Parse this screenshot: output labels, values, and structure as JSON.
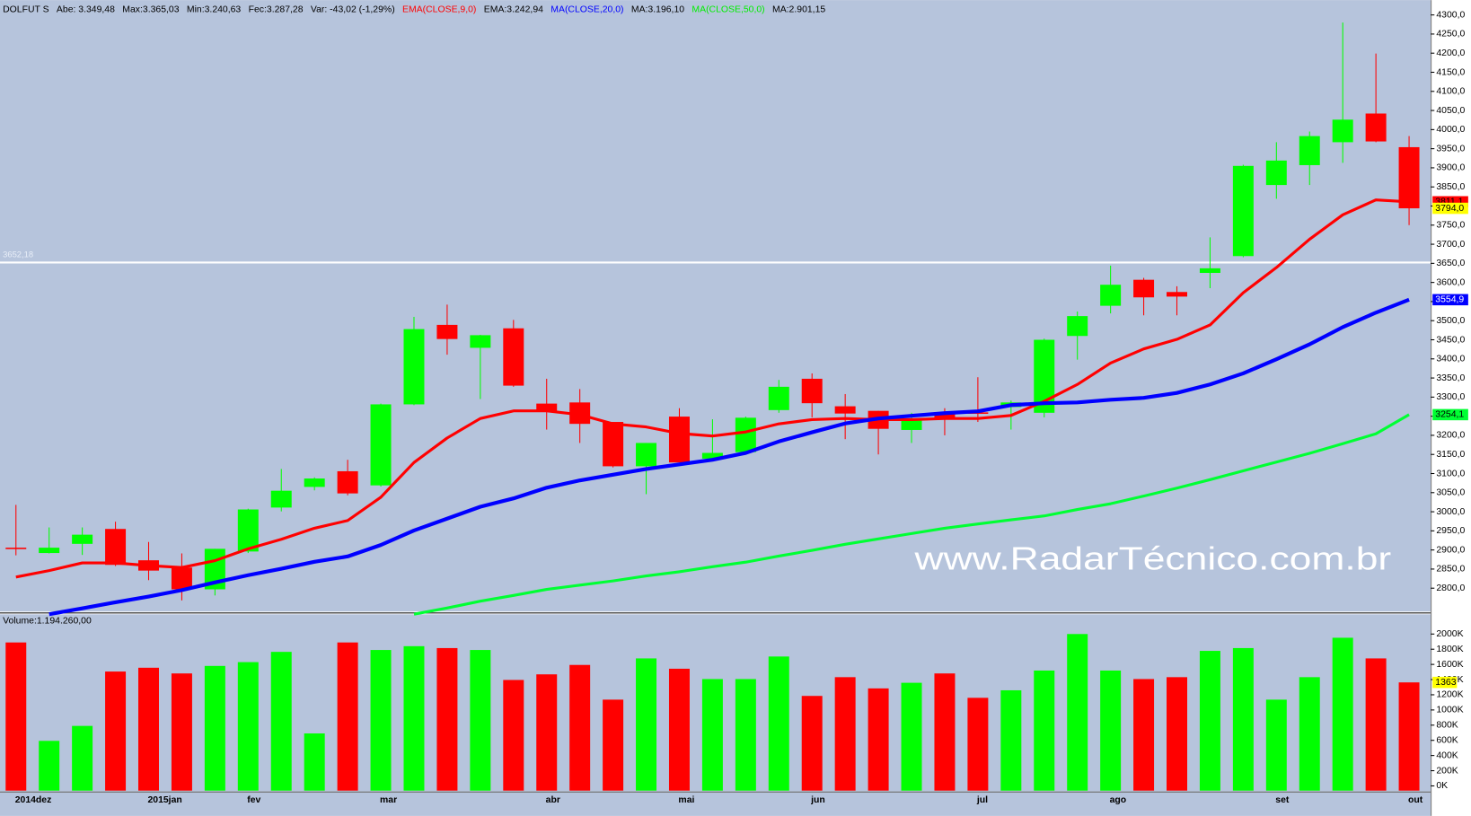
{
  "chart_data": [
    {
      "type": "candlestick",
      "title": "DOLFUT S",
      "info": [
        "Abe: 3.349,48",
        "Max:3.365,03",
        "Min:3.240,63",
        "Fec:3.287,28",
        "Var: -43,02 (-1,29%)"
      ],
      "categories": [
        "2014dez",
        null,
        null,
        null,
        "2015jan",
        null,
        null,
        "fev",
        null,
        null,
        null,
        "mar",
        null,
        null,
        null,
        null,
        "abr",
        null,
        null,
        null,
        "mai",
        null,
        null,
        null,
        "jun",
        null,
        null,
        null,
        null,
        "jul",
        null,
        null,
        null,
        "ago",
        null,
        null,
        null,
        null,
        "set",
        null,
        null,
        null,
        "out"
      ],
      "open": [
        2906,
        2892,
        2916,
        2955,
        2873,
        2854,
        2797,
        2896,
        3011,
        3065,
        3106,
        3069,
        3281,
        3489,
        3429,
        3480,
        3283,
        3286,
        3235,
        3119,
        3249,
        3139,
        3156,
        3266,
        3348,
        3276,
        3264,
        3214,
        3259,
        3260,
        3274,
        3259,
        3460,
        3539,
        3607,
        3575,
        3625,
        3669,
        3855,
        3907,
        3967,
        4042,
        3954
      ],
      "high": [
        3018,
        2959,
        2959,
        2974,
        2921,
        2891,
        2903,
        3008,
        3112,
        3090,
        3136,
        3283,
        3510,
        3542,
        3463,
        3502,
        3348,
        3321,
        3235,
        3180,
        3271,
        3242,
        3249,
        3345,
        3362,
        3308,
        3264,
        3259,
        3271,
        3352,
        3291,
        3453,
        3524,
        3644,
        3612,
        3590,
        3718,
        3908,
        3967,
        3995,
        4280,
        4199,
        3983
      ],
      "low": [
        2886,
        2891,
        2887,
        2858,
        2821,
        2768,
        2781,
        2892,
        3001,
        3056,
        3043,
        3066,
        3279,
        3411,
        3295,
        3327,
        3215,
        3180,
        3116,
        3046,
        3129,
        3134,
        3153,
        3259,
        3247,
        3190,
        3150,
        3180,
        3200,
        3235,
        3215,
        3247,
        3398,
        3519,
        3514,
        3514,
        3585,
        3666,
        3819,
        3855,
        3913,
        3967,
        3750
      ],
      "close": [
        2904,
        2906,
        2940,
        2861,
        2846,
        2797,
        2903,
        3006,
        3055,
        3087,
        3048,
        3281,
        3478,
        3452,
        3462,
        3330,
        3264,
        3230,
        3119,
        3180,
        3129,
        3154,
        3246,
        3327,
        3284,
        3257,
        3217,
        3239,
        3244,
        3258,
        3286,
        3450,
        3512,
        3594,
        3561,
        3563,
        3637,
        3905,
        3919,
        3983,
        4026,
        3969,
        3794
      ],
      "close_label": "3794,0",
      "up_color": "#00ff00",
      "down_color": "#ff0000",
      "series": [
        {
          "name": "EMA(CLOSE,9,0)",
          "value_text": "EMA:3.242,94",
          "color": "#ff0000",
          "label_color": "#ff0000",
          "last_label": "3811,1",
          "values": [
            2829,
            2846,
            2866,
            2866,
            2859,
            2854,
            2872,
            2903,
            2928,
            2957,
            2977,
            3038,
            3129,
            3193,
            3244,
            3264,
            3264,
            3254,
            3230,
            3222,
            3205,
            3198,
            3209,
            3230,
            3241,
            3244,
            3241,
            3241,
            3244,
            3244,
            3252,
            3289,
            3333,
            3389,
            3426,
            3451,
            3489,
            3573,
            3639,
            3713,
            3777,
            3816,
            3811.1
          ]
        },
        {
          "name": "MA(CLOSE,20,0)",
          "value_text": "MA:3.196,10",
          "color": "#0000ff",
          "label_color": "#0000ff",
          "last_label": "3554,9",
          "values": [
            null,
            2732,
            2747,
            2763,
            2778,
            2795,
            2815,
            2834,
            2851,
            2869,
            2883,
            2913,
            2951,
            2982,
            3013,
            3035,
            3063,
            3082,
            3097,
            3112,
            3124,
            3136,
            3154,
            3184,
            3208,
            3231,
            3244,
            3251,
            3258,
            3263,
            3279,
            3284,
            3286,
            3293,
            3298,
            3311,
            3333,
            3362,
            3399,
            3438,
            3483,
            3521,
            3554.9
          ]
        },
        {
          "name": "MA(CLOSE,50,0)",
          "value_text": "MA:2.901,15",
          "color": "#00ff33",
          "label_color": "#00ee00",
          "last_label": "3254,1",
          "values": [
            null,
            null,
            null,
            null,
            null,
            null,
            null,
            null,
            null,
            null,
            null,
            null,
            2732,
            2748,
            2766,
            2781,
            2797,
            2808,
            2819,
            2832,
            2843,
            2856,
            2868,
            2884,
            2899,
            2915,
            2929,
            2943,
            2957,
            2968,
            2979,
            2989,
            3006,
            3021,
            3041,
            3062,
            3084,
            3107,
            3130,
            3153,
            3178,
            3204,
            3254.1
          ]
        }
      ],
      "hline": {
        "value": 3652.18,
        "label": "3652,18",
        "color": "#ffffff"
      },
      "watermark": "www.RadarTécnico.com.br",
      "ylim": [
        2739,
        4334
      ],
      "yticks": [
        {
          "value": 2800,
          "label": "2800,0"
        },
        {
          "value": 2850,
          "label": "2850,0"
        },
        {
          "value": 2900,
          "label": "2900,0"
        },
        {
          "value": 2950,
          "label": "2950,0"
        },
        {
          "value": 3000,
          "label": "3000,0"
        },
        {
          "value": 3050,
          "label": "3050,0"
        },
        {
          "value": 3100,
          "label": "3100,0"
        },
        {
          "value": 3150,
          "label": "3150,0"
        },
        {
          "value": 3200,
          "label": "3200,0"
        },
        {
          "value": 3250,
          "label": "3250,0"
        },
        {
          "value": 3300,
          "label": "3300,0"
        },
        {
          "value": 3350,
          "label": "3350,0"
        },
        {
          "value": 3400,
          "label": "3400,0"
        },
        {
          "value": 3450,
          "label": "3450,0"
        },
        {
          "value": 3500,
          "label": "3500,0"
        },
        {
          "value": 3550,
          "label": "3550,0"
        },
        {
          "value": 3600,
          "label": "3600,0"
        },
        {
          "value": 3650,
          "label": "3650,0"
        },
        {
          "value": 3700,
          "label": "3700,0"
        },
        {
          "value": 3750,
          "label": "3750,0"
        },
        {
          "value": 3800,
          "label": "3800,0"
        },
        {
          "value": 3850,
          "label": "3850,0"
        },
        {
          "value": 3900,
          "label": "3900,0"
        },
        {
          "value": 3950,
          "label": "3950,0"
        },
        {
          "value": 4000,
          "label": "4000,0"
        },
        {
          "value": 4050,
          "label": "4050,0"
        },
        {
          "value": 4100,
          "label": "4100,0"
        },
        {
          "value": 4150,
          "label": "4150,0"
        },
        {
          "value": 4200,
          "label": "4200,0"
        },
        {
          "value": 4250,
          "label": "4250,0"
        },
        {
          "value": 4300,
          "label": "4300,0"
        }
      ],
      "grid": false
    },
    {
      "type": "bar",
      "title": "Volume:1.194.260,00",
      "values": [
        1889,
        593,
        790,
        1506,
        1556,
        1481,
        1580,
        1630,
        1765,
        691,
        1889,
        1790,
        1840,
        1815,
        1790,
        1395,
        1469,
        1593,
        1136,
        1679,
        1543,
        1407,
        1407,
        1704,
        1185,
        1432,
        1284,
        1358,
        1481,
        1160,
        1259,
        1519,
        2000,
        1519,
        1407,
        1432,
        1778,
        1815,
        1136,
        1432,
        1951,
        1679,
        1363
      ],
      "last_label": "1363",
      "ylim": [
        -62,
        2235
      ],
      "yticks": [
        {
          "value": 0,
          "label": "0K"
        },
        {
          "value": 200,
          "label": "200K"
        },
        {
          "value": 400,
          "label": "400K"
        },
        {
          "value": 600,
          "label": "600K"
        },
        {
          "value": 800,
          "label": "800K"
        },
        {
          "value": 1000,
          "label": "1000K"
        },
        {
          "value": 1200,
          "label": "1200K"
        },
        {
          "value": 1400,
          "label": "1400K"
        },
        {
          "value": 1600,
          "label": "1600K"
        },
        {
          "value": 1800,
          "label": "1800K"
        },
        {
          "value": 2000,
          "label": "2000K"
        }
      ],
      "grid": false
    }
  ]
}
